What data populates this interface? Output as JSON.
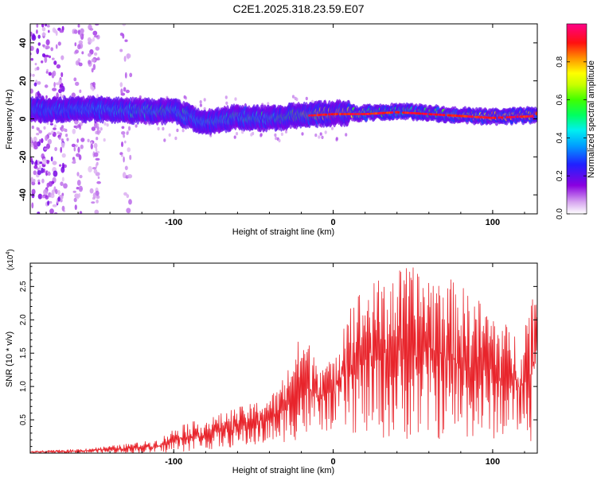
{
  "figure_title": "C2E1.2025.318.23.59.E07",
  "chart_data": [
    {
      "type": "heatmap",
      "title": "C2E1.2025.318.23.59.E07",
      "xlabel": "Height of straight line (km)",
      "ylabel": "Frequency (Hz)",
      "xlim": [
        -190,
        128
      ],
      "ylim": [
        -50,
        50
      ],
      "xticks": [
        -100,
        0,
        100
      ],
      "yticks": [
        -40,
        -20,
        0,
        20,
        40
      ],
      "xtick_labels": [
        "-100",
        "0",
        "100"
      ],
      "ytick_labels": [
        "-40",
        "-20",
        "0",
        "20",
        "40"
      ],
      "colorbar": {
        "label": "Normalized spectral amplitude",
        "range": [
          0,
          1
        ],
        "ticks": [
          "0.0",
          "0.2",
          "0.4",
          "0.6",
          "0.8"
        ],
        "tick_values": [
          0,
          0.2,
          0.4,
          0.6,
          0.8
        ]
      },
      "ridge": {
        "description_points_x": [
          -190,
          -150,
          -120,
          -100,
          -80,
          -60,
          -40,
          -20,
          0,
          20,
          40,
          60,
          80,
          100,
          128
        ],
        "center_frequency_hz": [
          5,
          5,
          4,
          4,
          -2,
          1,
          0,
          2,
          3,
          3,
          4,
          3,
          2,
          1,
          2
        ],
        "peak_amplitude": [
          0.4,
          0.45,
          0.55,
          0.55,
          0.5,
          0.55,
          0.55,
          0.7,
          0.9,
          0.65,
          0.6,
          0.65,
          0.8,
          0.9,
          0.95
        ]
      },
      "noise_columns_x": [
        -185,
        -175,
        -160,
        -150,
        -130
      ]
    },
    {
      "type": "line",
      "xlabel": "Height of straight line (km)",
      "ylabel": "SNR (10 * v/v)",
      "y_scale_label": "(x10",
      "y_scale_exponent": "4",
      "y_scale_suffix": ")",
      "xlim": [
        -190,
        128
      ],
      "ylim": [
        0,
        2.85
      ],
      "xticks": [
        -100,
        0,
        100
      ],
      "yticks": [
        0.5,
        1.0,
        1.5,
        2.0,
        2.5
      ],
      "xtick_labels": [
        "-100",
        "0",
        "100"
      ],
      "ytick_labels": [
        "0.5",
        "1.0",
        "1.5",
        "2.0",
        "2.5"
      ],
      "line_color": "#e8242b",
      "envelope": {
        "x": [
          -190,
          -160,
          -135,
          -110,
          -95,
          -80,
          -65,
          -50,
          -35,
          -20,
          -10,
          0,
          8,
          20,
          35,
          45,
          60,
          75,
          90,
          100,
          110,
          118,
          124,
          128
        ],
        "upper": [
          0.03,
          0.06,
          0.12,
          0.2,
          0.45,
          0.5,
          0.65,
          0.75,
          0.95,
          1.8,
          1.5,
          1.35,
          2.3,
          2.5,
          2.7,
          2.8,
          2.75,
          2.6,
          2.35,
          2.15,
          1.9,
          1.75,
          2.45,
          2.45
        ],
        "lower": [
          0.0,
          0.0,
          0.0,
          0.0,
          0.02,
          0.05,
          0.08,
          0.1,
          0.15,
          0.2,
          0.3,
          0.35,
          0.3,
          0.25,
          0.2,
          0.2,
          0.2,
          0.2,
          0.2,
          0.2,
          0.25,
          0.3,
          0.15,
          0.8
        ]
      }
    }
  ]
}
